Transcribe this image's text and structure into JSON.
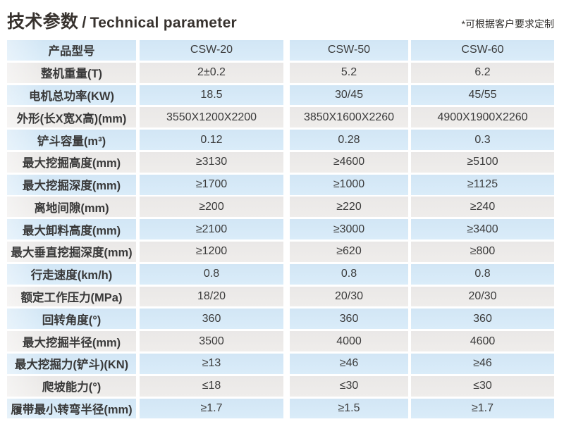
{
  "header": {
    "title_zh": "技术参数",
    "title_sep": "/",
    "title_en": "Technical parameter",
    "note": "*可根据客户要求定制"
  },
  "colors": {
    "row_blue": "#d6e9f7",
    "row_gray": "#ebe9e8",
    "text": "#3b3b3b",
    "title": "#37322e",
    "background": "#ffffff"
  },
  "table": {
    "rows": [
      [
        "产品型号",
        "CSW-20",
        "CSW-50",
        "CSW-60"
      ],
      [
        "整机重量(T)",
        "2±0.2",
        "5.2",
        "6.2"
      ],
      [
        "电机总功率(KW)",
        "18.5",
        "30/45",
        "45/55"
      ],
      [
        "外形(长X宽X高)(mm)",
        "3550X1200X2200",
        "3850X1600X2260",
        "4900X1900X2260"
      ],
      [
        "铲斗容量(m³)",
        "0.12",
        "0.28",
        "0.3"
      ],
      [
        "最大挖掘高度(mm)",
        "≥3130",
        "≥4600",
        "≥5100"
      ],
      [
        "最大挖掘深度(mm)",
        "≥1700",
        "≥1000",
        "≥1125"
      ],
      [
        "离地间隙(mm)",
        "≥200",
        "≥220",
        "≥240"
      ],
      [
        "最大卸料高度(mm)",
        "≥2100",
        "≥3000",
        "≥3400"
      ],
      [
        "最大垂直挖掘深度(mm)",
        "≥1200",
        "≥620",
        "≥800"
      ],
      [
        "行走速度(km/h)",
        "0.8",
        "0.8",
        "0.8"
      ],
      [
        "额定工作压力(MPa)",
        "18/20",
        "20/30",
        "20/30"
      ],
      [
        "回转角度(°)",
        "360",
        "360",
        "360"
      ],
      [
        "最大挖掘半径(mm)",
        "3500",
        "4000",
        "4600"
      ],
      [
        "最大挖掘力(铲斗)(KN)",
        "≥13",
        "≥46",
        "≥46"
      ],
      [
        "爬坡能力(°)",
        "≤18",
        "≤30",
        "≤30"
      ],
      [
        "履带最小转弯半径(mm)",
        "≥1.7",
        "≥1.5",
        "≥1.7"
      ]
    ]
  },
  "chart_data": {
    "type": "table",
    "title": "技术参数 / Technical parameter",
    "columns": [
      "产品型号",
      "CSW-20",
      "CSW-50",
      "CSW-60"
    ],
    "rows": [
      [
        "整机重量(T)",
        "2±0.2",
        "5.2",
        "6.2"
      ],
      [
        "电机总功率(KW)",
        "18.5",
        "30/45",
        "45/55"
      ],
      [
        "外形(长X宽X高)(mm)",
        "3550X1200X2200",
        "3850X1600X2260",
        "4900X1900X2260"
      ],
      [
        "铲斗容量(m³)",
        "0.12",
        "0.28",
        "0.3"
      ],
      [
        "最大挖掘高度(mm)",
        "≥3130",
        "≥4600",
        "≥5100"
      ],
      [
        "最大挖掘深度(mm)",
        "≥1700",
        "≥1000",
        "≥1125"
      ],
      [
        "离地间隙(mm)",
        "≥200",
        "≥220",
        "≥240"
      ],
      [
        "最大卸料高度(mm)",
        "≥2100",
        "≥3000",
        "≥3400"
      ],
      [
        "最大垂直挖掘深度(mm)",
        "≥1200",
        "≥620",
        "≥800"
      ],
      [
        "行走速度(km/h)",
        "0.8",
        "0.8",
        "0.8"
      ],
      [
        "额定工作压力(MPa)",
        "18/20",
        "20/30",
        "20/30"
      ],
      [
        "回转角度(°)",
        "360",
        "360",
        "360"
      ],
      [
        "最大挖掘半径(mm)",
        "3500",
        "4000",
        "4600"
      ],
      [
        "最大挖掘力(铲斗)(KN)",
        "≥13",
        "≥46",
        "≥46"
      ],
      [
        "爬坡能力(°)",
        "≤18",
        "≤30",
        "≤30"
      ],
      [
        "履带最小转弯半径(mm)",
        "≥1.7",
        "≥1.5",
        "≥1.7"
      ]
    ]
  }
}
